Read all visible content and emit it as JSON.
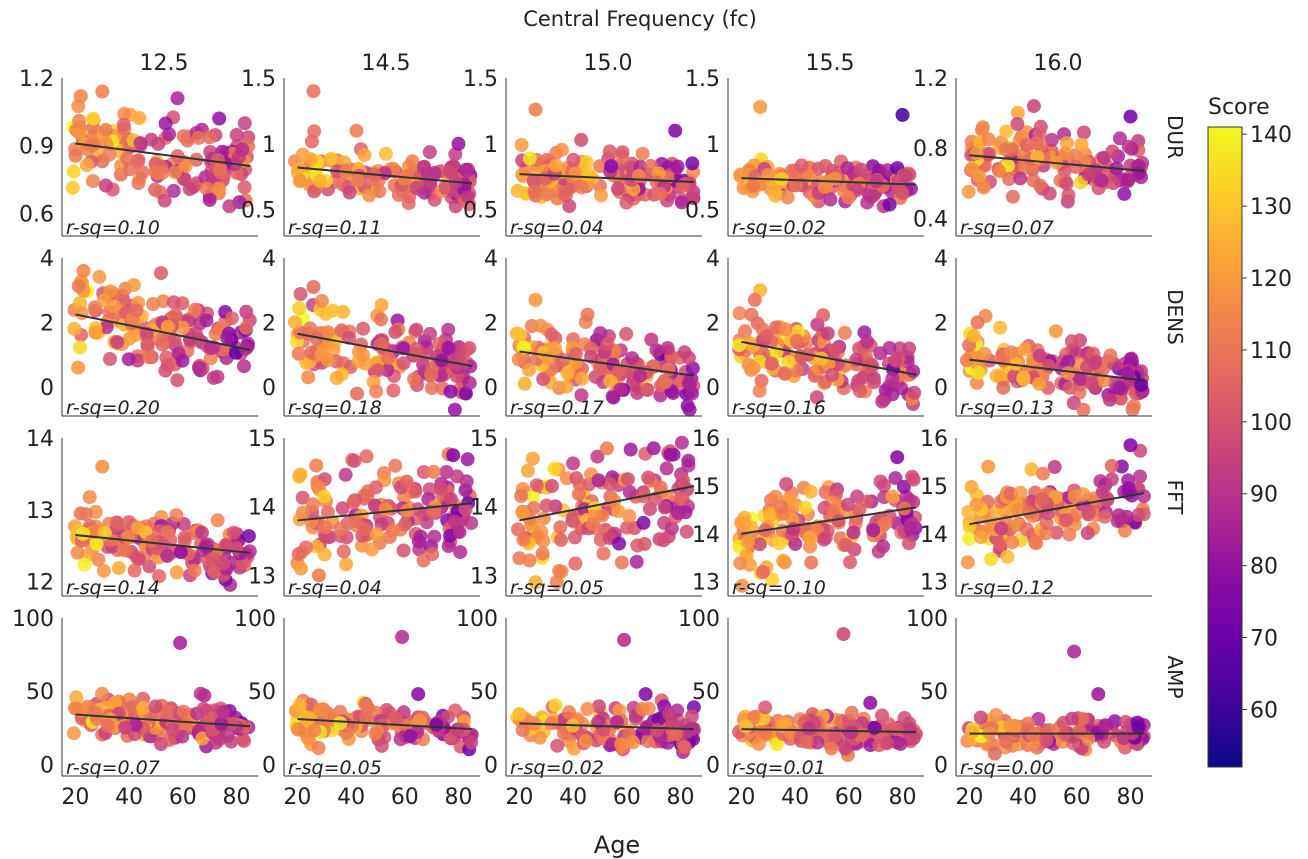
{
  "chart_data": {
    "type": "scatter",
    "title": "Central Frequency (fc)",
    "xlabel": "Age",
    "xlim": [
      15,
      88
    ],
    "xticks": [
      20,
      40,
      60,
      80
    ],
    "columns": [
      "12.5",
      "14.5",
      "15.0",
      "15.5",
      "16.0"
    ],
    "rows": [
      {
        "label": "DUR",
        "panels": [
          {
            "ylim": [
              0.5,
              1.2
            ],
            "yticks": [
              "0.6",
              "0.9",
              "1.2"
            ],
            "rsq": "r-sq=0.10",
            "fit": [
              [
                20,
                0.91
              ],
              [
                85,
                0.81
              ]
            ],
            "center": 0.86,
            "spread": 0.09,
            "slope": -0.0015,
            "outliers": [
              [
                30,
                1.14
              ],
              [
                22,
                1.12
              ],
              [
                58,
                1.11
              ],
              [
                70,
                0.66
              ]
            ]
          },
          {
            "ylim": [
              0.3,
              1.5
            ],
            "yticks": [
              "0.5",
              "1",
              "1.5"
            ],
            "rsq": "r-sq=0.11",
            "fit": [
              [
                20,
                0.82
              ],
              [
                85,
                0.7
              ]
            ],
            "center": 0.76,
            "spread": 0.1,
            "slope": -0.0018,
            "outliers": [
              [
                26,
                1.4
              ],
              [
                42,
                1.1
              ],
              [
                80,
                1.0
              ]
            ]
          },
          {
            "ylim": [
              0.3,
              1.5
            ],
            "yticks": [
              "0.5",
              "1",
              "1.5"
            ],
            "rsq": "r-sq=0.04",
            "fit": [
              [
                20,
                0.77
              ],
              [
                85,
                0.71
              ]
            ],
            "center": 0.74,
            "spread": 0.09,
            "slope": -0.0009,
            "outliers": [
              [
                26,
                1.26
              ],
              [
                43,
                1.03
              ],
              [
                78,
                1.1
              ]
            ]
          },
          {
            "ylim": [
              0.3,
              1.5
            ],
            "yticks": [
              "0.5",
              "1",
              "1.5"
            ],
            "rsq": "r-sq=0.02",
            "fit": [
              [
                20,
                0.74
              ],
              [
                85,
                0.69
              ]
            ],
            "center": 0.72,
            "spread": 0.08,
            "slope": -0.0008,
            "outliers": [
              [
                27,
                1.28
              ],
              [
                80,
                1.22
              ]
            ]
          },
          {
            "ylim": [
              0.3,
              1.2
            ],
            "yticks": [
              "0.4",
              "0.8",
              "1.2"
            ],
            "rsq": "r-sq=0.07",
            "fit": [
              [
                20,
                0.76
              ],
              [
                85,
                0.67
              ]
            ],
            "center": 0.72,
            "spread": 0.09,
            "slope": -0.0014,
            "outliers": [
              [
                44,
                1.04
              ],
              [
                80,
                0.98
              ]
            ]
          }
        ]
      },
      {
        "label": "DENS",
        "panels": [
          {
            "ylim": [
              -0.9,
              4
            ],
            "yticks": [
              "0",
              "2",
              "4"
            ],
            "rsq": "r-sq=0.20",
            "fit": [
              [
                20,
                2.25
              ],
              [
                85,
                1.15
              ]
            ],
            "center": 1.7,
            "spread": 0.65,
            "slope": -0.017,
            "outliers": [
              [
                23,
                3.6
              ],
              [
                21,
                0.6
              ],
              [
                66,
                0.6
              ]
            ]
          },
          {
            "ylim": [
              -0.9,
              4
            ],
            "yticks": [
              "0",
              "2",
              "4"
            ],
            "rsq": "r-sq=0.18",
            "fit": [
              [
                20,
                1.65
              ],
              [
                85,
                0.65
              ]
            ],
            "center": 1.15,
            "spread": 0.6,
            "slope": -0.015,
            "outliers": [
              [
                26,
                3.1
              ],
              [
                24,
                0.3
              ]
            ]
          },
          {
            "ylim": [
              -0.9,
              4
            ],
            "yticks": [
              "0",
              "2",
              "4"
            ],
            "rsq": "r-sq=0.17",
            "fit": [
              [
                20,
                1.1
              ],
              [
                85,
                0.35
              ]
            ],
            "center": 0.72,
            "spread": 0.55,
            "slope": -0.012,
            "outliers": [
              [
                26,
                2.7
              ],
              [
                22,
                0.1
              ]
            ]
          },
          {
            "ylim": [
              -0.9,
              4
            ],
            "yticks": [
              "0",
              "2",
              "4"
            ],
            "rsq": "r-sq=0.16",
            "fit": [
              [
                20,
                1.4
              ],
              [
                85,
                0.38
              ]
            ],
            "center": 0.9,
            "spread": 0.6,
            "slope": -0.015,
            "outliers": [
              [
                27,
                3.0
              ],
              [
                25,
                2.7
              ]
            ]
          },
          {
            "ylim": [
              -0.9,
              4
            ],
            "yticks": [
              "0",
              "2",
              "4"
            ],
            "rsq": "r-sq=0.13",
            "fit": [
              [
                20,
                0.85
              ],
              [
                85,
                0.2
              ]
            ],
            "center": 0.52,
            "spread": 0.45,
            "slope": -0.01,
            "outliers": [
              [
                26,
                2.2
              ],
              [
                23,
                2.0
              ]
            ]
          }
        ]
      },
      {
        "label": "FFT",
        "panels": [
          {
            "ylim": [
              11.8,
              14
            ],
            "yticks": [
              "12",
              "13",
              "14"
            ],
            "rsq": "r-sq=0.14",
            "fit": [
              [
                20,
                12.65
              ],
              [
                85,
                12.4
              ]
            ],
            "center": 12.52,
            "spread": 0.2,
            "slope": -0.004,
            "outliers": [
              [
                30,
                13.6
              ],
              [
                22,
                12.95
              ]
            ]
          },
          {
            "ylim": [
              12.7,
              15
            ],
            "yticks": [
              "13",
              "14",
              "15"
            ],
            "rsq": "r-sq=0.04",
            "fit": [
              [
                20,
                13.8
              ],
              [
                85,
                14.05
              ]
            ],
            "center": 13.92,
            "spread": 0.35,
            "slope": 0.004,
            "outliers": [
              [
                27,
                14.6
              ],
              [
                28,
                13.0
              ],
              [
                78,
                14.75
              ]
            ]
          },
          {
            "ylim": [
              12.7,
              15
            ],
            "yticks": [
              "13",
              "14",
              "15"
            ],
            "rsq": "r-sq=0.05",
            "fit": [
              [
                20,
                13.8
              ],
              [
                85,
                14.3
              ]
            ],
            "center": 14.05,
            "spread": 0.4,
            "slope": 0.007,
            "outliers": [
              [
                26,
                12.9
              ],
              [
                25,
                14.7
              ],
              [
                70,
                14.85
              ]
            ]
          },
          {
            "ylim": [
              12.7,
              16
            ],
            "yticks": [
              "13",
              "14",
              "15",
              "16"
            ],
            "rsq": "r-sq=0.10",
            "fit": [
              [
                20,
                14.0
              ],
              [
                85,
                14.55
              ]
            ],
            "center": 14.25,
            "spread": 0.4,
            "slope": 0.008,
            "outliers": [
              [
                78,
                15.6
              ],
              [
                28,
                13.2
              ]
            ]
          },
          {
            "ylim": [
              12.7,
              16
            ],
            "yticks": [
              "13",
              "14",
              "15",
              "16"
            ],
            "rsq": "r-sq=0.12",
            "fit": [
              [
                20,
                14.2
              ],
              [
                85,
                14.85
              ]
            ],
            "center": 14.5,
            "spread": 0.4,
            "slope": 0.01,
            "outliers": [
              [
                80,
                15.85
              ],
              [
                27,
                15.4
              ]
            ]
          }
        ]
      },
      {
        "label": "AMP",
        "panels": [
          {
            "ylim": [
              -8,
              100
            ],
            "yticks": [
              "0",
              "50",
              "100"
            ],
            "rsq": "r-sq=0.07",
            "fit": [
              [
                20,
                34
              ],
              [
                85,
                26
              ]
            ],
            "center": 30,
            "spread": 7,
            "slope": -0.12,
            "outliers": [
              [
                59,
                83
              ],
              [
                68,
                47
              ]
            ]
          },
          {
            "ylim": [
              -8,
              100
            ],
            "yticks": [
              "0",
              "50",
              "100"
            ],
            "rsq": "r-sq=0.05",
            "fit": [
              [
                20,
                31
              ],
              [
                85,
                24
              ]
            ],
            "center": 27,
            "spread": 7,
            "slope": -0.1,
            "outliers": [
              [
                59,
                87
              ],
              [
                65,
                48
              ]
            ]
          },
          {
            "ylim": [
              -8,
              100
            ],
            "yticks": [
              "0",
              "50",
              "100"
            ],
            "rsq": "r-sq=0.02",
            "fit": [
              [
                20,
                28
              ],
              [
                85,
                24
              ]
            ],
            "center": 26,
            "spread": 7,
            "slope": -0.06,
            "outliers": [
              [
                59,
                85
              ],
              [
                67,
                48
              ]
            ]
          },
          {
            "ylim": [
              -8,
              100
            ],
            "yticks": [
              "0",
              "50",
              "100"
            ],
            "rsq": "r-sq=0.01",
            "fit": [
              [
                20,
                24
              ],
              [
                85,
                22
              ]
            ],
            "center": 23,
            "spread": 6,
            "slope": -0.03,
            "outliers": [
              [
                58,
                89
              ],
              [
                68,
                42
              ]
            ]
          },
          {
            "ylim": [
              -8,
              100
            ],
            "yticks": [
              "0",
              "50",
              "100"
            ],
            "rsq": "r-sq=0.00",
            "fit": [
              [
                20,
                21
              ],
              [
                85,
                21
              ]
            ],
            "center": 21,
            "spread": 5,
            "slope": 0.0,
            "outliers": [
              [
                59,
                77
              ],
              [
                68,
                48
              ]
            ]
          }
        ]
      }
    ],
    "colorbar": {
      "label": "Score",
      "range": [
        52,
        141
      ],
      "ticks": [
        "60",
        "70",
        "80",
        "90",
        "100",
        "110",
        "120",
        "130",
        "140"
      ],
      "stops": [
        "#0d0887",
        "#41049d",
        "#6a00a8",
        "#8f0da4",
        "#b12a90",
        "#cc4778",
        "#e16462",
        "#f2844b",
        "#fca636",
        "#fcce25",
        "#f0f921"
      ]
    }
  }
}
